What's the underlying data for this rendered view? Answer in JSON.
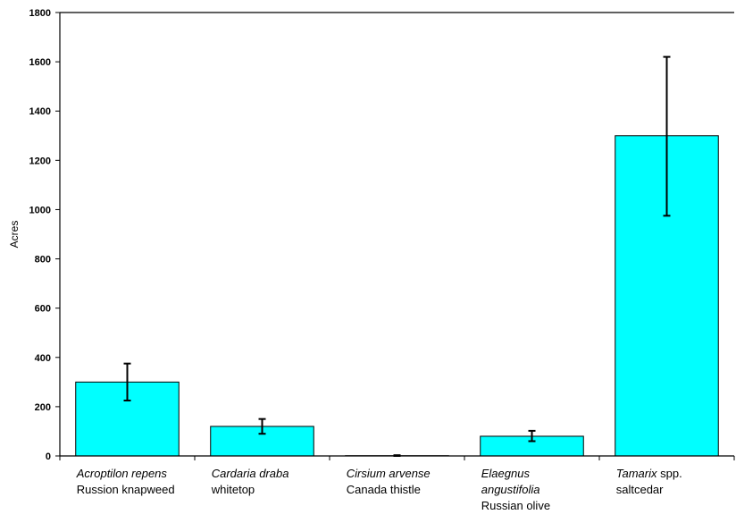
{
  "chart_data": {
    "type": "bar",
    "title": "",
    "xlabel": "",
    "ylabel": "Acres",
    "ylim": [
      0,
      1800
    ],
    "yticks": [
      0,
      200,
      400,
      600,
      800,
      1000,
      1200,
      1400,
      1600,
      1800
    ],
    "grid": false,
    "legend": "none",
    "bar_color": "#00FFFF",
    "bar_edge_color": "#000000",
    "categories": [
      {
        "label_lines": [
          {
            "parts": [
              {
                "text": "Acroptilon repens",
                "italic": true
              }
            ]
          },
          {
            "parts": [
              {
                "text": "Russion knapweed",
                "italic": false
              }
            ]
          }
        ]
      },
      {
        "label_lines": [
          {
            "parts": [
              {
                "text": "Cardaria draba",
                "italic": true
              }
            ]
          },
          {
            "parts": [
              {
                "text": "whitetop",
                "italic": false
              }
            ]
          }
        ]
      },
      {
        "label_lines": [
          {
            "parts": [
              {
                "text": "Cirsium arvense",
                "italic": true
              }
            ]
          },
          {
            "parts": [
              {
                "text": "Canada thistle",
                "italic": false
              }
            ]
          }
        ]
      },
      {
        "label_lines": [
          {
            "parts": [
              {
                "text": "Elaegnus",
                "italic": true
              }
            ]
          },
          {
            "parts": [
              {
                "text": "angustifolia",
                "italic": true
              }
            ]
          },
          {
            "parts": [
              {
                "text": "Russian olive",
                "italic": false
              }
            ]
          }
        ]
      },
      {
        "label_lines": [
          {
            "parts": [
              {
                "text": "Tamarix",
                "italic": true
              },
              {
                "text": " spp.",
                "italic": false
              }
            ]
          },
          {
            "parts": [
              {
                "text": "saltcedar",
                "italic": false
              }
            ]
          }
        ]
      }
    ],
    "values": [
      300,
      120,
      1,
      80,
      1300
    ],
    "error_low": [
      225,
      90,
      0,
      60,
      975
    ],
    "error_high": [
      375,
      150,
      3,
      102,
      1620
    ]
  }
}
